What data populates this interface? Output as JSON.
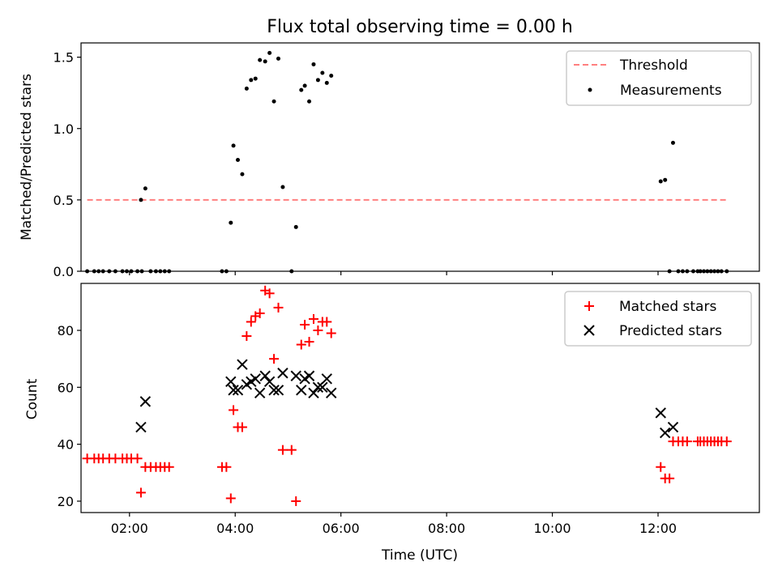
{
  "chart_data": [
    {
      "type": "scatter",
      "title": "Flux total observing time = 0.00 h",
      "xlabel": "",
      "ylabel": "Matched/Predicted stars",
      "ylim": [
        0,
        1.6
      ],
      "xlim": [
        "01:05",
        "13:55"
      ],
      "y_ticks": [
        "0.0",
        "0.5",
        "1.0",
        "1.5"
      ],
      "grid": false,
      "legend_position": "top-right",
      "colors": {
        "threshold": "#ff7f7f",
        "measurements": "#000000"
      },
      "series": [
        {
          "name": "Threshold",
          "style": "dashed-line",
          "points": [
            [
              "01:12",
              0.5
            ],
            [
              "13:18",
              0.5
            ]
          ]
        },
        {
          "name": "Measurements",
          "style": "dot",
          "points": [
            [
              "01:12",
              0.0
            ],
            [
              "01:20",
              0.0
            ],
            [
              "01:25",
              0.0
            ],
            [
              "01:30",
              0.0
            ],
            [
              "01:37",
              0.0
            ],
            [
              "01:44",
              0.0
            ],
            [
              "01:52",
              0.0
            ],
            [
              "01:57",
              0.0
            ],
            [
              "02:02",
              0.0
            ],
            [
              "02:09",
              0.0
            ],
            [
              "02:14",
              0.0
            ],
            [
              "02:13",
              0.5
            ],
            [
              "02:18",
              0.58
            ],
            [
              "02:24",
              0.0
            ],
            [
              "02:30",
              0.0
            ],
            [
              "02:35",
              0.0
            ],
            [
              "02:40",
              0.0
            ],
            [
              "02:45",
              0.0
            ],
            [
              "03:45",
              0.0
            ],
            [
              "03:50",
              0.0
            ],
            [
              "03:55",
              0.34
            ],
            [
              "03:58",
              0.88
            ],
            [
              "04:03",
              0.78
            ],
            [
              "04:08",
              0.68
            ],
            [
              "04:13",
              1.28
            ],
            [
              "04:18",
              1.34
            ],
            [
              "04:23",
              1.35
            ],
            [
              "04:28",
              1.48
            ],
            [
              "04:34",
              1.47
            ],
            [
              "04:39",
              1.53
            ],
            [
              "04:44",
              1.19
            ],
            [
              "04:49",
              1.49
            ],
            [
              "04:54",
              0.59
            ],
            [
              "05:04",
              0.0
            ],
            [
              "05:09",
              0.31
            ],
            [
              "05:15",
              1.27
            ],
            [
              "05:19",
              1.3
            ],
            [
              "05:24",
              1.19
            ],
            [
              "05:29",
              1.45
            ],
            [
              "05:34",
              1.34
            ],
            [
              "05:39",
              1.39
            ],
            [
              "05:44",
              1.32
            ],
            [
              "05:49",
              1.37
            ],
            [
              "12:03",
              0.63
            ],
            [
              "12:08",
              0.64
            ],
            [
              "12:13",
              0.0
            ],
            [
              "12:17",
              0.9
            ],
            [
              "12:23",
              0.0
            ],
            [
              "12:28",
              0.0
            ],
            [
              "12:33",
              0.0
            ],
            [
              "12:40",
              0.0
            ],
            [
              "12:45",
              0.0
            ],
            [
              "12:48",
              0.0
            ],
            [
              "12:52",
              0.0
            ],
            [
              "12:56",
              0.0
            ],
            [
              "13:00",
              0.0
            ],
            [
              "13:04",
              0.0
            ],
            [
              "13:08",
              0.0
            ],
            [
              "13:12",
              0.0
            ],
            [
              "13:18",
              0.0
            ]
          ]
        }
      ]
    },
    {
      "type": "scatter",
      "title": "",
      "xlabel": "Time (UTC)",
      "ylabel": "Count",
      "ylim": [
        16,
        96.5
      ],
      "xlim": [
        "01:05",
        "13:55"
      ],
      "x_ticks": [
        "02:00",
        "04:00",
        "06:00",
        "08:00",
        "10:00",
        "12:00"
      ],
      "y_ticks": [
        "20",
        "40",
        "60",
        "80"
      ],
      "grid": false,
      "legend_position": "top-right",
      "colors": {
        "matched": "#ff0000",
        "predicted": "#000000"
      },
      "series": [
        {
          "name": "Matched stars",
          "marker": "plus",
          "points": [
            [
              "01:12",
              35
            ],
            [
              "01:20",
              35
            ],
            [
              "01:25",
              35
            ],
            [
              "01:30",
              35
            ],
            [
              "01:37",
              35
            ],
            [
              "01:44",
              35
            ],
            [
              "01:52",
              35
            ],
            [
              "01:57",
              35
            ],
            [
              "02:02",
              35
            ],
            [
              "02:09",
              35
            ],
            [
              "02:13",
              23
            ],
            [
              "02:18",
              32
            ],
            [
              "02:24",
              32
            ],
            [
              "02:30",
              32
            ],
            [
              "02:35",
              32
            ],
            [
              "02:40",
              32
            ],
            [
              "02:45",
              32
            ],
            [
              "03:45",
              32
            ],
            [
              "03:50",
              32
            ],
            [
              "03:55",
              21
            ],
            [
              "03:58",
              52
            ],
            [
              "04:03",
              46
            ],
            [
              "04:08",
              46
            ],
            [
              "04:13",
              78
            ],
            [
              "04:18",
              83
            ],
            [
              "04:23",
              85
            ],
            [
              "04:28",
              86
            ],
            [
              "04:34",
              94
            ],
            [
              "04:39",
              93
            ],
            [
              "04:44",
              70
            ],
            [
              "04:49",
              88
            ],
            [
              "04:54",
              38
            ],
            [
              "05:04",
              38
            ],
            [
              "05:09",
              20
            ],
            [
              "05:15",
              75
            ],
            [
              "05:19",
              82
            ],
            [
              "05:24",
              76
            ],
            [
              "05:29",
              84
            ],
            [
              "05:34",
              80
            ],
            [
              "05:39",
              83
            ],
            [
              "05:44",
              83
            ],
            [
              "05:49",
              79
            ],
            [
              "12:03",
              32
            ],
            [
              "12:08",
              28
            ],
            [
              "12:13",
              28
            ],
            [
              "12:17",
              41
            ],
            [
              "12:23",
              41
            ],
            [
              "12:28",
              41
            ],
            [
              "12:33",
              41
            ],
            [
              "12:45",
              41
            ],
            [
              "12:48",
              41
            ],
            [
              "12:52",
              41
            ],
            [
              "12:56",
              41
            ],
            [
              "13:00",
              41
            ],
            [
              "13:04",
              41
            ],
            [
              "13:08",
              41
            ],
            [
              "13:12",
              41
            ],
            [
              "13:18",
              41
            ]
          ]
        },
        {
          "name": "Predicted stars",
          "marker": "x",
          "points": [
            [
              "02:13",
              46
            ],
            [
              "02:18",
              55
            ],
            [
              "03:55",
              62
            ],
            [
              "03:58",
              59
            ],
            [
              "04:03",
              59
            ],
            [
              "04:08",
              68
            ],
            [
              "04:13",
              61
            ],
            [
              "04:18",
              62
            ],
            [
              "04:23",
              63
            ],
            [
              "04:28",
              58
            ],
            [
              "04:34",
              64
            ],
            [
              "04:39",
              62
            ],
            [
              "04:44",
              59
            ],
            [
              "04:49",
              59
            ],
            [
              "04:54",
              65
            ],
            [
              "05:09",
              64
            ],
            [
              "05:15",
              59
            ],
            [
              "05:19",
              63
            ],
            [
              "05:24",
              64
            ],
            [
              "05:29",
              58
            ],
            [
              "05:34",
              60
            ],
            [
              "05:39",
              60
            ],
            [
              "05:44",
              63
            ],
            [
              "05:49",
              58
            ],
            [
              "12:03",
              51
            ],
            [
              "12:08",
              44
            ],
            [
              "12:17",
              46
            ]
          ]
        }
      ]
    }
  ]
}
